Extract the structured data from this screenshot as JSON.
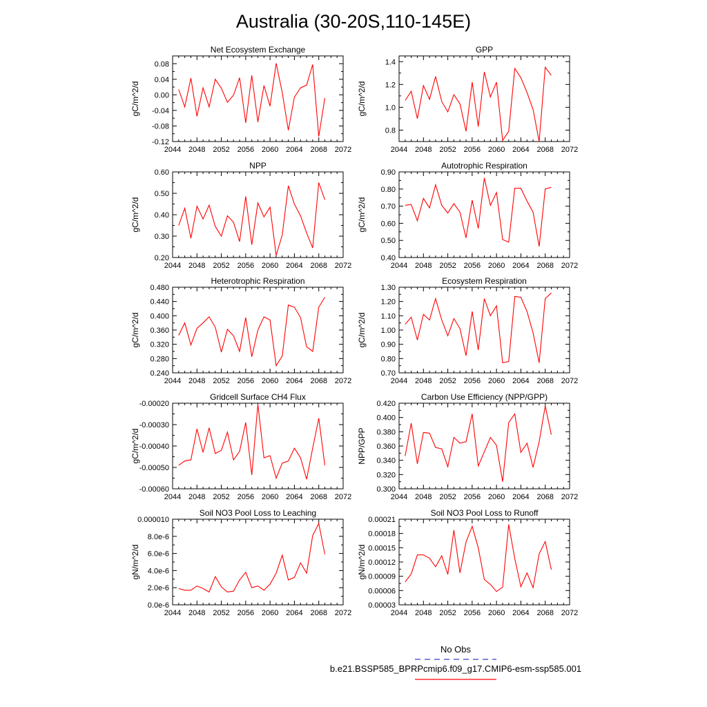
{
  "title": "Australia (30-20S,110-145E)",
  "legend": {
    "obs_label": "No Obs",
    "obs_color": "#3a3acc",
    "model_label": "b.e21.BSSP585_BPRPcmip6.f09_g17.CMIP6-esm-ssp585.001",
    "model_color": "#ff0000"
  },
  "chart_data": [
    {
      "type": "line",
      "title": "Net Ecosystem Exchange",
      "ylabel": "gC/m^2/d",
      "xlim": [
        2044,
        2072
      ],
      "xticks": [
        "2044",
        "2048",
        "2052",
        "2056",
        "2060",
        "2064",
        "2068",
        "2072"
      ],
      "ylim": [
        -0.12,
        0.1
      ],
      "yticks": [
        "-0.12",
        "-0.08",
        "-0.04",
        "0.00",
        "0.04",
        "0.08"
      ],
      "series": [
        {
          "color": "#ff0000",
          "x": [
            2045,
            2046,
            2047,
            2048,
            2049,
            2050,
            2051,
            2052,
            2053,
            2054,
            2055,
            2056,
            2057,
            2058,
            2059,
            2060,
            2061,
            2062,
            2063,
            2064,
            2065,
            2066,
            2067,
            2068,
            2069
          ],
          "y": [
            0.014,
            -0.031,
            0.043,
            -0.055,
            0.018,
            -0.031,
            0.04,
            0.017,
            -0.019,
            -0.001,
            0.044,
            -0.072,
            0.05,
            -0.07,
            0.024,
            -0.029,
            0.081,
            0.006,
            -0.091,
            -0.006,
            0.018,
            0.025,
            0.078,
            -0.107,
            -0.008
          ]
        }
      ]
    },
    {
      "type": "line",
      "title": "GPP",
      "ylabel": "gC/m^2/d",
      "xlim": [
        2044,
        2072
      ],
      "xticks": [
        "2044",
        "2048",
        "2052",
        "2056",
        "2060",
        "2064",
        "2068",
        "2072"
      ],
      "ylim": [
        0.7,
        1.45
      ],
      "yticks": [
        "0.8",
        "1.0",
        "1.2",
        "1.4"
      ],
      "series": [
        {
          "color": "#ff0000",
          "x": [
            2045,
            2046,
            2047,
            2048,
            2049,
            2050,
            2051,
            2052,
            2053,
            2054,
            2055,
            2056,
            2057,
            2058,
            2059,
            2060,
            2061,
            2062,
            2063,
            2064,
            2065,
            2066,
            2067,
            2068,
            2069
          ],
          "y": [
            1.06,
            1.14,
            0.9,
            1.19,
            1.07,
            1.27,
            1.05,
            0.96,
            1.11,
            1.03,
            0.79,
            1.22,
            0.83,
            1.31,
            1.09,
            1.22,
            0.71,
            0.79,
            1.34,
            1.26,
            1.13,
            0.98,
            0.7,
            1.35,
            1.28
          ]
        }
      ]
    },
    {
      "type": "line",
      "title": "NPP",
      "ylabel": "gC/m^2/d",
      "xlim": [
        2044,
        2072
      ],
      "xticks": [
        "2044",
        "2048",
        "2052",
        "2056",
        "2060",
        "2064",
        "2068",
        "2072"
      ],
      "ylim": [
        0.2,
        0.6
      ],
      "yticks": [
        "0.20",
        "0.30",
        "0.40",
        "0.50",
        "0.60"
      ],
      "series": [
        {
          "color": "#ff0000",
          "x": [
            2045,
            2046,
            2047,
            2048,
            2049,
            2050,
            2051,
            2052,
            2053,
            2054,
            2055,
            2056,
            2057,
            2058,
            2059,
            2060,
            2061,
            2062,
            2063,
            2064,
            2065,
            2066,
            2067,
            2068,
            2069
          ],
          "y": [
            0.35,
            0.43,
            0.29,
            0.44,
            0.38,
            0.445,
            0.345,
            0.3,
            0.395,
            0.365,
            0.275,
            0.485,
            0.26,
            0.455,
            0.39,
            0.435,
            0.21,
            0.305,
            0.535,
            0.45,
            0.395,
            0.315,
            0.245,
            0.55,
            0.47
          ]
        }
      ]
    },
    {
      "type": "line",
      "title": "Autotrophic Respiration",
      "ylabel": "gC/m^2/d",
      "xlim": [
        2044,
        2072
      ],
      "xticks": [
        "2044",
        "2048",
        "2052",
        "2056",
        "2060",
        "2064",
        "2068",
        "2072"
      ],
      "ylim": [
        0.4,
        0.9
      ],
      "yticks": [
        "0.40",
        "0.50",
        "0.60",
        "0.70",
        "0.80",
        "0.90"
      ],
      "series": [
        {
          "color": "#ff0000",
          "x": [
            2045,
            2046,
            2047,
            2048,
            2049,
            2050,
            2051,
            2052,
            2053,
            2054,
            2055,
            2056,
            2057,
            2058,
            2059,
            2060,
            2061,
            2062,
            2063,
            2064,
            2065,
            2066,
            2067,
            2068,
            2069
          ],
          "y": [
            0.705,
            0.71,
            0.615,
            0.745,
            0.69,
            0.825,
            0.705,
            0.66,
            0.715,
            0.665,
            0.515,
            0.735,
            0.57,
            0.865,
            0.705,
            0.78,
            0.505,
            0.49,
            0.805,
            0.805,
            0.73,
            0.665,
            0.465,
            0.8,
            0.81
          ]
        }
      ]
    },
    {
      "type": "line",
      "title": "Heterotrophic Respiration",
      "ylabel": "gC/m^2/d",
      "xlim": [
        2044,
        2072
      ],
      "xticks": [
        "2044",
        "2048",
        "2052",
        "2056",
        "2060",
        "2064",
        "2068",
        "2072"
      ],
      "ylim": [
        0.24,
        0.48
      ],
      "yticks": [
        "0.240",
        "0.280",
        "0.320",
        "0.360",
        "0.400",
        "0.440",
        "0.480"
      ],
      "series": [
        {
          "color": "#ff0000",
          "x": [
            2045,
            2046,
            2047,
            2048,
            2049,
            2050,
            2051,
            2052,
            2053,
            2054,
            2055,
            2056,
            2057,
            2058,
            2059,
            2060,
            2061,
            2062,
            2063,
            2064,
            2065,
            2066,
            2067,
            2068,
            2069
          ],
          "y": [
            0.345,
            0.38,
            0.318,
            0.365,
            0.38,
            0.397,
            0.368,
            0.298,
            0.362,
            0.344,
            0.3,
            0.395,
            0.285,
            0.36,
            0.397,
            0.388,
            0.26,
            0.287,
            0.43,
            0.424,
            0.395,
            0.313,
            0.3,
            0.424,
            0.452
          ]
        }
      ]
    },
    {
      "type": "line",
      "title": "Ecosystem Respiration",
      "ylabel": "gC/m^2/d",
      "xlim": [
        2044,
        2072
      ],
      "xticks": [
        "2044",
        "2048",
        "2052",
        "2056",
        "2060",
        "2064",
        "2068",
        "2072"
      ],
      "ylim": [
        0.7,
        1.3
      ],
      "yticks": [
        "0.70",
        "0.80",
        "0.90",
        "1.00",
        "1.10",
        "1.20",
        "1.30"
      ],
      "series": [
        {
          "color": "#ff0000",
          "x": [
            2045,
            2046,
            2047,
            2048,
            2049,
            2050,
            2051,
            2052,
            2053,
            2054,
            2055,
            2056,
            2057,
            2058,
            2059,
            2060,
            2061,
            2062,
            2063,
            2064,
            2065,
            2066,
            2067,
            2068,
            2069
          ],
          "y": [
            1.04,
            1.09,
            0.93,
            1.11,
            1.07,
            1.22,
            1.07,
            0.96,
            1.08,
            1.01,
            0.82,
            1.13,
            0.86,
            1.22,
            1.1,
            1.17,
            0.77,
            0.78,
            1.235,
            1.23,
            1.13,
            0.98,
            0.77,
            1.22,
            1.26
          ]
        }
      ]
    },
    {
      "type": "line",
      "title": "Gridcell Surface CH4 Flux",
      "ylabel": "gC/m^2/d",
      "xlim": [
        2044,
        2072
      ],
      "xticks": [
        "2044",
        "2048",
        "2052",
        "2056",
        "2060",
        "2064",
        "2068",
        "2072"
      ],
      "ylim": [
        -0.0006,
        -0.0002
      ],
      "yticks": [
        "-0.00060",
        "-0.00050",
        "-0.00040",
        "-0.00030",
        "-0.00020"
      ],
      "series": [
        {
          "color": "#ff0000",
          "x": [
            2045,
            2046,
            2047,
            2048,
            2049,
            2050,
            2051,
            2052,
            2053,
            2054,
            2055,
            2056,
            2057,
            2058,
            2059,
            2060,
            2061,
            2062,
            2063,
            2064,
            2065,
            2066,
            2067,
            2068,
            2069
          ],
          "y": [
            -0.00049,
            -0.00047,
            -0.000465,
            -0.00032,
            -0.00043,
            -0.000315,
            -0.000435,
            -0.00042,
            -0.000335,
            -0.000465,
            -0.000425,
            -0.00029,
            -0.000535,
            -0.000205,
            -0.000455,
            -0.000445,
            -0.00055,
            -0.00048,
            -0.00047,
            -0.00041,
            -0.000455,
            -0.000555,
            -0.00041,
            -0.00027,
            -0.00049
          ]
        }
      ]
    },
    {
      "type": "line",
      "title": "Carbon Use Efficiency (NPP/GPP)",
      "ylabel": "NPP/GPP",
      "xlim": [
        2044,
        2072
      ],
      "xticks": [
        "2044",
        "2048",
        "2052",
        "2056",
        "2060",
        "2064",
        "2068",
        "2072"
      ],
      "ylim": [
        0.3,
        0.42
      ],
      "yticks": [
        "0.300",
        "0.320",
        "0.340",
        "0.360",
        "0.380",
        "0.400",
        "0.420"
      ],
      "series": [
        {
          "color": "#ff0000",
          "x": [
            2045,
            2046,
            2047,
            2048,
            2049,
            2050,
            2051,
            2052,
            2053,
            2054,
            2055,
            2056,
            2057,
            2058,
            2059,
            2060,
            2061,
            2062,
            2063,
            2064,
            2065,
            2066,
            2067,
            2068,
            2069
          ],
          "y": [
            0.346,
            0.392,
            0.335,
            0.379,
            0.378,
            0.358,
            0.356,
            0.331,
            0.372,
            0.364,
            0.366,
            0.405,
            0.332,
            0.352,
            0.372,
            0.361,
            0.31,
            0.393,
            0.405,
            0.351,
            0.364,
            0.33,
            0.366,
            0.416,
            0.376
          ]
        }
      ]
    },
    {
      "type": "line",
      "title": "Soil NO3 Pool Loss to Leaching",
      "ylabel": "gN/m^2/d",
      "xlim": [
        2044,
        2072
      ],
      "xticks": [
        "2044",
        "2048",
        "2052",
        "2056",
        "2060",
        "2064",
        "2068",
        "2072"
      ],
      "ylim": [
        0,
        1e-05
      ],
      "yticks": [
        "0.0e-6",
        "2.0e-6",
        "4.0e-6",
        "6.0e-6",
        "8.0e-6",
        "0.000010"
      ],
      "series": [
        {
          "color": "#ff0000",
          "x": [
            2045,
            2046,
            2047,
            2048,
            2049,
            2050,
            2051,
            2052,
            2053,
            2054,
            2055,
            2056,
            2057,
            2058,
            2059,
            2060,
            2061,
            2062,
            2063,
            2064,
            2065,
            2066,
            2067,
            2068,
            2069
          ],
          "y": [
            1.9e-06,
            1.7e-06,
            1.7e-06,
            2.2e-06,
            1.9e-06,
            1.5e-06,
            3.3e-06,
            2.1e-06,
            1.5e-06,
            1.6e-06,
            2.9e-06,
            3.8e-06,
            2e-06,
            2.2e-06,
            1.7e-06,
            2.4e-06,
            3.7e-06,
            5.8e-06,
            2.9e-06,
            3.2e-06,
            4.9e-06,
            3.7e-06,
            8.1e-06,
            9.5e-06,
            5.9e-06
          ]
        }
      ]
    },
    {
      "type": "line",
      "title": "Soil NO3 Pool Loss to Runoff",
      "ylabel": "gN/m^2/d",
      "xlim": [
        2044,
        2072
      ],
      "xticks": [
        "2044",
        "2048",
        "2052",
        "2056",
        "2060",
        "2064",
        "2068",
        "2072"
      ],
      "ylim": [
        3e-05,
        0.00021
      ],
      "yticks": [
        "0.00003",
        "0.00006",
        "0.00009",
        "0.00012",
        "0.00015",
        "0.00018",
        "0.00021"
      ],
      "series": [
        {
          "color": "#ff0000",
          "x": [
            2045,
            2046,
            2047,
            2048,
            2049,
            2050,
            2051,
            2052,
            2053,
            2054,
            2055,
            2056,
            2057,
            2058,
            2059,
            2060,
            2061,
            2062,
            2063,
            2064,
            2065,
            2066,
            2067,
            2068,
            2069
          ],
          "y": [
            7.8e-05,
            9.5e-05,
            0.000135,
            0.000135,
            0.000128,
            0.00011,
            0.000133,
            9.4e-05,
            0.000187,
            9.7e-05,
            0.000162,
            0.000195,
            0.00015,
            8.3e-05,
            7.3e-05,
            5.8e-05,
            6.7e-05,
            0.000199,
            0.000127,
            6.8e-05,
            9.7e-05,
            6.6e-05,
            0.000137,
            0.000163,
            0.000104
          ]
        }
      ]
    }
  ]
}
